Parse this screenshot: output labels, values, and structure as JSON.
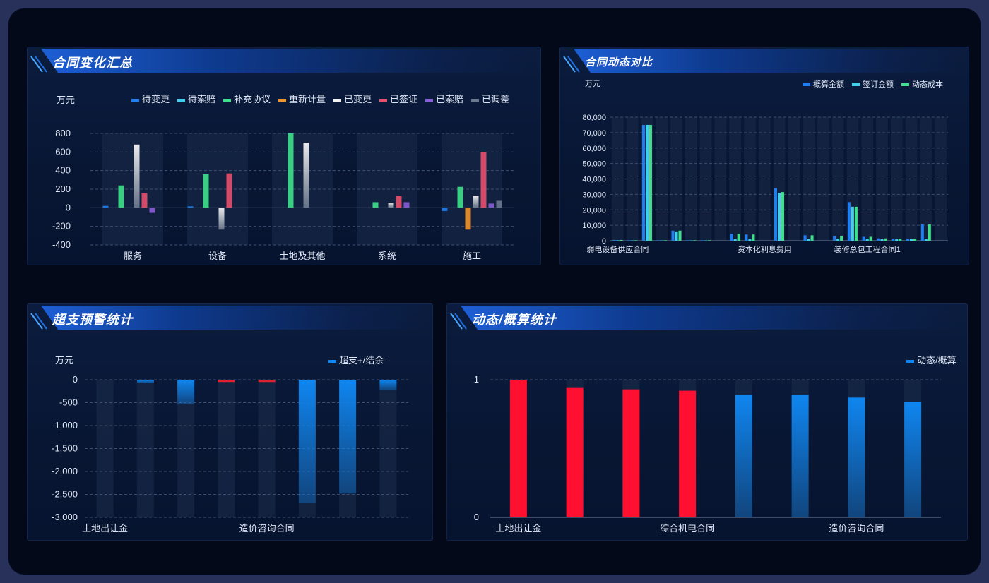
{
  "panels": {
    "p1": {
      "title": "合同变化汇总"
    },
    "p2": {
      "title": "合同动态对比"
    },
    "p3": {
      "title": "超支预警统计"
    },
    "p4": {
      "title": "动态/概算统计"
    }
  },
  "colors": {
    "待变更": "#1f7ff0",
    "待索赔": "#3fd0f0",
    "补充协议": "#3fe08c",
    "重新计量": "#f09630",
    "已变更": "#f2f2f2",
    "已签证": "#e8506e",
    "已索赔": "#8a5ed8",
    "已调差": "#6a7890",
    "red": "#ff1030",
    "blue": "#0f86f0"
  },
  "chart_data": [
    {
      "type": "bar",
      "unit": "万元",
      "categories": [
        "服务",
        "设备",
        "土地及其他",
        "系统",
        "施工"
      ],
      "series": [
        {
          "name": "待变更",
          "values": [
            20,
            15,
            0,
            0,
            -35
          ]
        },
        {
          "name": "待索赔",
          "values": [
            0,
            0,
            0,
            0,
            0
          ]
        },
        {
          "name": "补充协议",
          "values": [
            240,
            360,
            800,
            60,
            225
          ]
        },
        {
          "name": "重新计量",
          "values": [
            0,
            0,
            0,
            0,
            -235
          ]
        },
        {
          "name": "已变更",
          "values": [
            680,
            -235,
            700,
            55,
            130
          ]
        },
        {
          "name": "已签证",
          "values": [
            155,
            370,
            0,
            125,
            600
          ]
        },
        {
          "name": "已索赔",
          "values": [
            -55,
            0,
            0,
            60,
            45
          ]
        },
        {
          "name": "已调差",
          "values": [
            0,
            0,
            0,
            0,
            75
          ]
        }
      ],
      "ylim": [
        -400,
        800
      ],
      "yticks": [
        800,
        600,
        400,
        200,
        0,
        -200,
        -400
      ],
      "grid": true,
      "legend": "top"
    },
    {
      "type": "bar",
      "unit": "万元",
      "categories": [
        "弱电设备供应合同",
        "c2",
        "c3",
        "c4",
        "c5",
        "c6",
        "c7",
        "c8",
        "c9",
        "c10",
        "资本化利息费用",
        "c12",
        "c13",
        "c14",
        "c15",
        "c16",
        "c17",
        "装修总包工程合同1",
        "c19",
        "c20",
        "c21",
        "c22",
        "c23"
      ],
      "shown_category_labels": [
        "弱电设备供应合同",
        "资本化利息费用",
        "装修总包工程合同1"
      ],
      "series": [
        {
          "name": "概算金额",
          "values": [
            500,
            300,
            75000,
            300,
            6500,
            300,
            300,
            0,
            4500,
            4000,
            0,
            34000,
            0,
            3500,
            0,
            3000,
            25000,
            2500,
            1500,
            1200,
            1200,
            10500,
            0
          ]
        },
        {
          "name": "签订金额",
          "values": [
            300,
            200,
            75000,
            200,
            6000,
            200,
            200,
            0,
            1000,
            1000,
            0,
            31000,
            0,
            1000,
            0,
            1000,
            22000,
            1000,
            1000,
            1000,
            1000,
            1000,
            0
          ]
        },
        {
          "name": "动态成本",
          "values": [
            500,
            300,
            75000,
            300,
            6500,
            300,
            300,
            0,
            4500,
            4000,
            0,
            31500,
            0,
            3500,
            0,
            3000,
            22000,
            2500,
            1500,
            1200,
            1200,
            10500,
            0
          ]
        }
      ],
      "ylim": [
        0,
        80000
      ],
      "yticks": [
        "80,000",
        "70,000",
        "60,000",
        "50,000",
        "40,000",
        "30,000",
        "20,000",
        "10,000",
        "0"
      ],
      "grid": true,
      "legend": "top-right"
    },
    {
      "type": "bar",
      "unit": "万元",
      "categories": [
        "土地出让金",
        "c2",
        "c3",
        "c4",
        "造价咨询合同",
        "c6",
        "c7",
        "c8"
      ],
      "shown_category_labels": [
        "土地出让金",
        "造价咨询合同"
      ],
      "series": [
        {
          "name": "超支+/结余-",
          "values": [
            0,
            -70,
            -530,
            -50,
            -50,
            -2680,
            -2480,
            -220
          ]
        }
      ],
      "ylim": [
        -3000,
        0
      ],
      "yticks": [
        "0",
        "-500",
        "-1,000",
        "-1,500",
        "-2,000",
        "-2,500",
        "-3,000"
      ],
      "grid": true,
      "legend": "top-right"
    },
    {
      "type": "bar",
      "categories": [
        "土地出让金",
        "c2",
        "c3",
        "综合机电合同",
        "c5",
        "c6",
        "造价咨询合同",
        "c8"
      ],
      "shown_category_labels": [
        "土地出让金",
        "综合机电合同",
        "造价咨询合同"
      ],
      "series": [
        {
          "name": "动态/概算",
          "values": [
            1.0,
            0.94,
            0.93,
            0.92,
            0.89,
            0.89,
            0.87,
            0.84
          ]
        }
      ],
      "colors": [
        "red",
        "red",
        "red",
        "red",
        "blue",
        "blue",
        "blue",
        "blue"
      ],
      "ylim": [
        0,
        1
      ],
      "yticks": [
        "1",
        "0"
      ],
      "grid": true,
      "legend": "top-right"
    }
  ]
}
